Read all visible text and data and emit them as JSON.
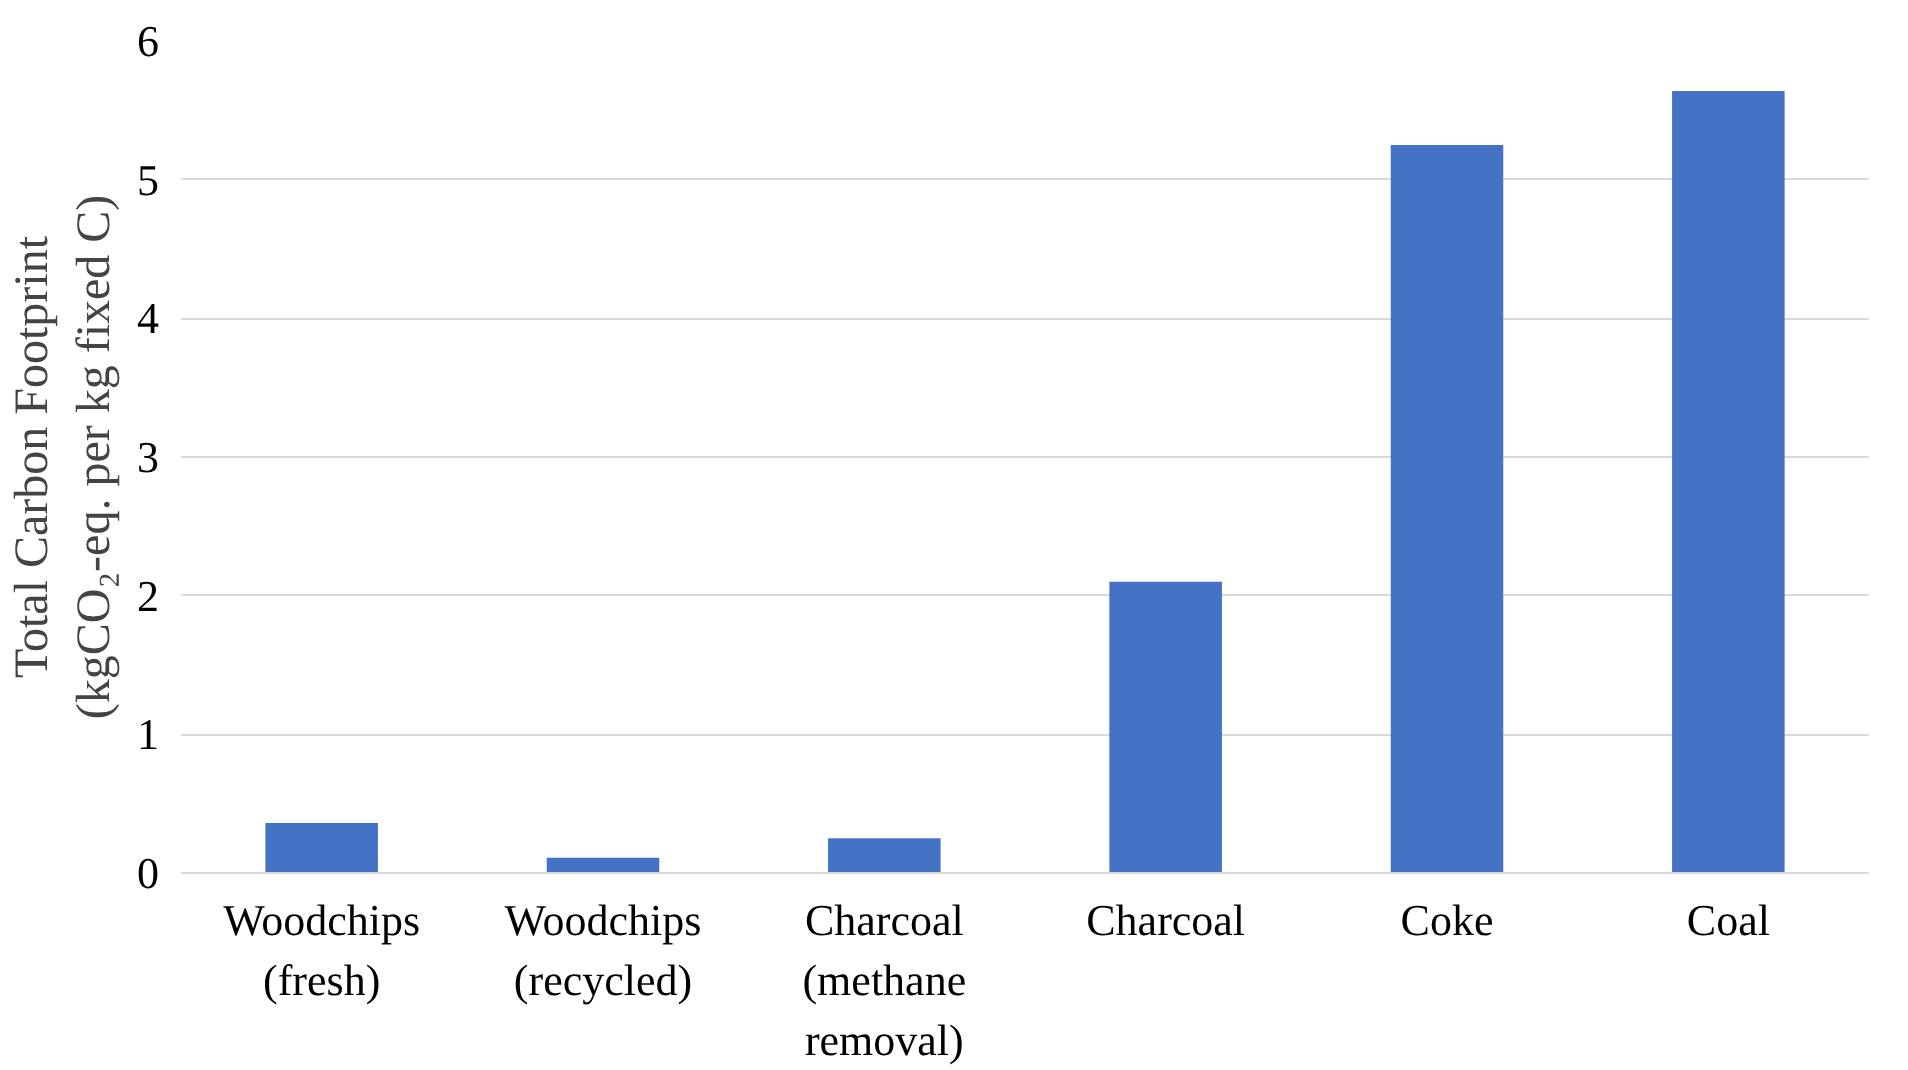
{
  "chart_data": {
    "type": "bar",
    "ylabel": "Total Carbon Footprint\n(kgCO₂-eq. per kg fixed C)",
    "categories": [
      "Woodchips\n(fresh)",
      "Woodchips\n(recycled)",
      "Charcoal\n(methane\nremoval)",
      "Charcoal",
      "Coke",
      "Coal"
    ],
    "values": [
      0.36,
      0.11,
      0.25,
      2.1,
      5.25,
      5.64
    ],
    "color": "#4472c4",
    "ylim": [
      0,
      6
    ],
    "yticks": [
      0,
      1,
      2,
      3,
      4,
      5,
      6
    ],
    "grid": "y"
  }
}
